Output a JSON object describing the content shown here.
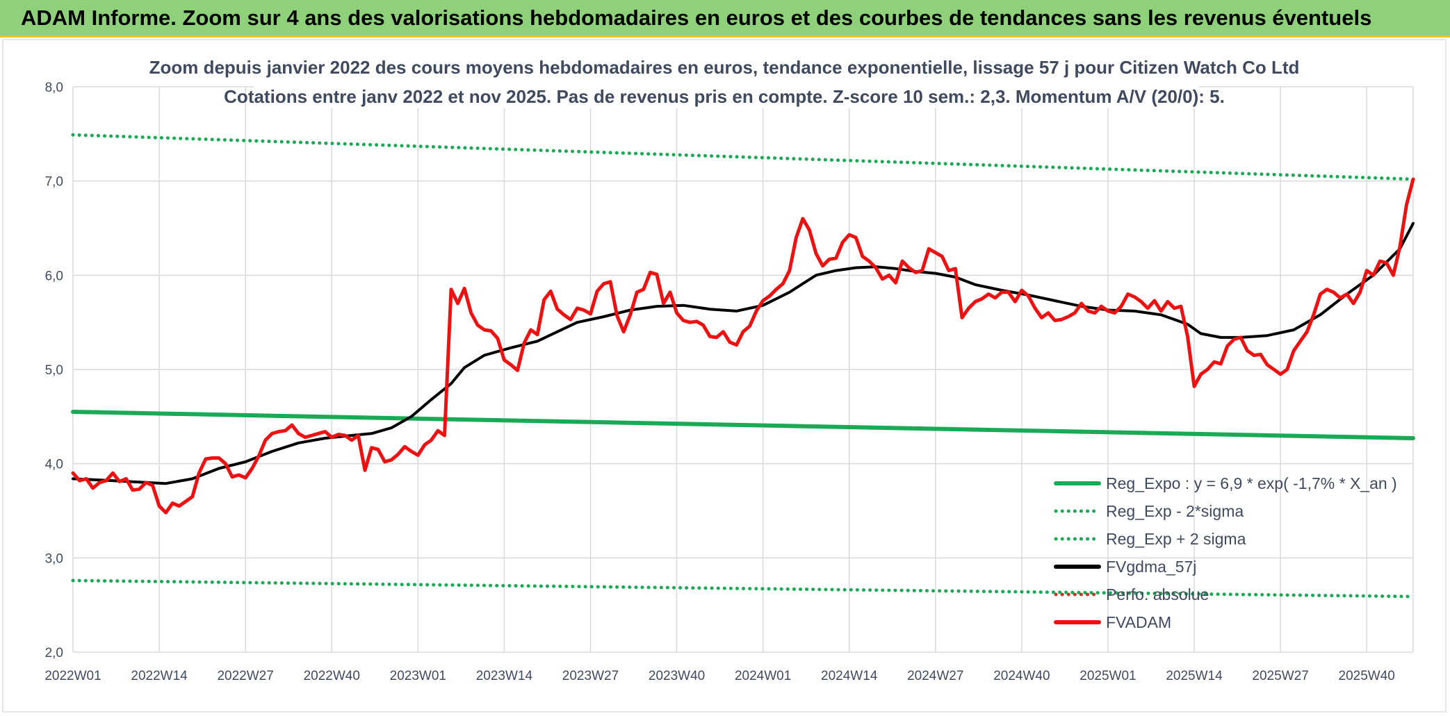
{
  "header": {
    "title": "ADAM Informe. Zoom sur 4 ans des valorisations hebdomadaires en euros et des courbes de tendances sans les revenus éventuels"
  },
  "colors": {
    "banner": "#8fd07a",
    "trend": "#1aaa55",
    "fvgdma": "#000000",
    "fvadam": "#ee1111",
    "perfo": "#c0392b"
  },
  "chart_data": {
    "type": "line",
    "title": "Zoom depuis janvier 2022 des cours moyens hebdomadaires en euros, tendance exponentielle, lissage 57 j pour Citizen Watch Co Ltd",
    "subtitle": "Cotations entre janv 2022 et nov 2025. Pas de revenus pris en compte. Z-score 10 sem.: 2,3. Momentum A/V (20/0): 5.",
    "xlabel": "",
    "ylabel": "",
    "ylim": [
      2.0,
      8.0
    ],
    "y_ticks": [
      "2,0",
      "3,0",
      "4,0",
      "5,0",
      "6,0",
      "7,0",
      "8,0"
    ],
    "x_range": [
      0,
      202
    ],
    "x_ticks": [
      {
        "label": "2022W01",
        "x": 0
      },
      {
        "label": "2022W14",
        "x": 13
      },
      {
        "label": "2022W27",
        "x": 26
      },
      {
        "label": "2022W40",
        "x": 39
      },
      {
        "label": "2023W01",
        "x": 52
      },
      {
        "label": "2023W14",
        "x": 65
      },
      {
        "label": "2023W27",
        "x": 78
      },
      {
        "label": "2023W40",
        "x": 91
      },
      {
        "label": "2024W01",
        "x": 104
      },
      {
        "label": "2024W14",
        "x": 117
      },
      {
        "label": "2024W27",
        "x": 130
      },
      {
        "label": "2024W40",
        "x": 143
      },
      {
        "label": "2025W01",
        "x": 156
      },
      {
        "label": "2025W14",
        "x": 169
      },
      {
        "label": "2025W27",
        "x": 182
      },
      {
        "label": "2025W40",
        "x": 195
      }
    ],
    "series": [
      {
        "name": "Reg_Expo : y = 6,9 * exp( -1,7% *  X_an )",
        "style": "solid",
        "color": "#1aaa55",
        "width": 6,
        "points": [
          [
            0,
            4.55
          ],
          [
            202,
            4.27
          ]
        ]
      },
      {
        "name": "Reg_Exp - 2*sigma",
        "style": "dotted",
        "color": "#1aaa55",
        "width": 5,
        "points": [
          [
            0,
            2.76
          ],
          [
            202,
            2.59
          ]
        ]
      },
      {
        "name": "Reg_Exp + 2 sigma",
        "style": "dotted",
        "color": "#1aaa55",
        "width": 5,
        "points": [
          [
            0,
            7.49
          ],
          [
            202,
            7.02
          ]
        ]
      },
      {
        "name": "FVgdma_57j",
        "style": "solid",
        "color": "#000000",
        "width": 4,
        "points": [
          [
            0,
            3.84
          ],
          [
            6,
            3.82
          ],
          [
            11,
            3.8
          ],
          [
            14,
            3.79
          ],
          [
            18,
            3.84
          ],
          [
            22,
            3.95
          ],
          [
            26,
            4.02
          ],
          [
            30,
            4.13
          ],
          [
            34,
            4.22
          ],
          [
            38,
            4.27
          ],
          [
            42,
            4.3
          ],
          [
            45,
            4.32
          ],
          [
            48,
            4.38
          ],
          [
            51,
            4.5
          ],
          [
            54,
            4.68
          ],
          [
            57,
            4.85
          ],
          [
            59,
            5.02
          ],
          [
            62,
            5.15
          ],
          [
            66,
            5.23
          ],
          [
            70,
            5.3
          ],
          [
            73,
            5.4
          ],
          [
            76,
            5.5
          ],
          [
            80,
            5.56
          ],
          [
            84,
            5.63
          ],
          [
            88,
            5.67
          ],
          [
            92,
            5.68
          ],
          [
            96,
            5.64
          ],
          [
            100,
            5.62
          ],
          [
            104,
            5.68
          ],
          [
            108,
            5.82
          ],
          [
            112,
            6.0
          ],
          [
            115,
            6.05
          ],
          [
            118,
            6.08
          ],
          [
            121,
            6.09
          ],
          [
            124,
            6.07
          ],
          [
            127,
            6.04
          ],
          [
            130,
            6.02
          ],
          [
            133,
            5.98
          ],
          [
            136,
            5.9
          ],
          [
            140,
            5.84
          ],
          [
            144,
            5.79
          ],
          [
            148,
            5.73
          ],
          [
            152,
            5.67
          ],
          [
            156,
            5.63
          ],
          [
            160,
            5.62
          ],
          [
            164,
            5.58
          ],
          [
            168,
            5.48
          ],
          [
            170,
            5.38
          ],
          [
            173,
            5.34
          ],
          [
            176,
            5.34
          ],
          [
            180,
            5.36
          ],
          [
            184,
            5.42
          ],
          [
            188,
            5.58
          ],
          [
            192,
            5.8
          ],
          [
            196,
            6.0
          ],
          [
            200,
            6.28
          ],
          [
            202,
            6.55
          ]
        ]
      },
      {
        "name": "Perfo. absolue",
        "style": "dotted",
        "color": "#c0392b",
        "width": 3,
        "points": []
      },
      {
        "name": "FVADAM",
        "style": "solid",
        "color": "#ee1111",
        "width": 5,
        "points": [
          [
            0,
            3.9
          ],
          [
            1,
            3.82
          ],
          [
            2,
            3.84
          ],
          [
            3,
            3.74
          ],
          [
            4,
            3.8
          ],
          [
            5,
            3.82
          ],
          [
            6,
            3.9
          ],
          [
            7,
            3.81
          ],
          [
            8,
            3.84
          ],
          [
            9,
            3.72
          ],
          [
            10,
            3.73
          ],
          [
            11,
            3.8
          ],
          [
            12,
            3.77
          ],
          [
            13,
            3.55
          ],
          [
            14,
            3.48
          ],
          [
            15,
            3.58
          ],
          [
            16,
            3.55
          ],
          [
            17,
            3.6
          ],
          [
            18,
            3.65
          ],
          [
            19,
            3.9
          ],
          [
            20,
            4.05
          ],
          [
            21,
            4.06
          ],
          [
            22,
            4.06
          ],
          [
            23,
            4.0
          ],
          [
            24,
            3.86
          ],
          [
            25,
            3.88
          ],
          [
            26,
            3.85
          ],
          [
            27,
            3.95
          ],
          [
            28,
            4.08
          ],
          [
            29,
            4.25
          ],
          [
            30,
            4.32
          ],
          [
            31,
            4.34
          ],
          [
            32,
            4.35
          ],
          [
            33,
            4.41
          ],
          [
            34,
            4.32
          ],
          [
            35,
            4.28
          ],
          [
            36,
            4.3
          ],
          [
            37,
            4.32
          ],
          [
            38,
            4.34
          ],
          [
            39,
            4.28
          ],
          [
            40,
            4.31
          ],
          [
            41,
            4.3
          ],
          [
            42,
            4.25
          ],
          [
            43,
            4.3
          ],
          [
            44,
            3.93
          ],
          [
            45,
            4.17
          ],
          [
            46,
            4.15
          ],
          [
            47,
            4.02
          ],
          [
            48,
            4.04
          ],
          [
            49,
            4.1
          ],
          [
            50,
            4.18
          ],
          [
            51,
            4.13
          ],
          [
            52,
            4.09
          ],
          [
            53,
            4.2
          ],
          [
            54,
            4.25
          ],
          [
            55,
            4.35
          ],
          [
            56,
            4.3
          ],
          [
            57,
            5.85
          ],
          [
            58,
            5.7
          ],
          [
            59,
            5.86
          ],
          [
            60,
            5.6
          ],
          [
            61,
            5.47
          ],
          [
            62,
            5.42
          ],
          [
            63,
            5.41
          ],
          [
            64,
            5.33
          ],
          [
            65,
            5.1
          ],
          [
            66,
            5.05
          ],
          [
            67,
            4.99
          ],
          [
            68,
            5.28
          ],
          [
            69,
            5.42
          ],
          [
            70,
            5.37
          ],
          [
            71,
            5.74
          ],
          [
            72,
            5.83
          ],
          [
            73,
            5.64
          ],
          [
            74,
            5.58
          ],
          [
            75,
            5.53
          ],
          [
            76,
            5.65
          ],
          [
            77,
            5.63
          ],
          [
            78,
            5.59
          ],
          [
            79,
            5.83
          ],
          [
            80,
            5.91
          ],
          [
            81,
            5.93
          ],
          [
            82,
            5.57
          ],
          [
            83,
            5.4
          ],
          [
            84,
            5.58
          ],
          [
            85,
            5.82
          ],
          [
            86,
            5.85
          ],
          [
            87,
            6.03
          ],
          [
            88,
            6.01
          ],
          [
            89,
            5.7
          ],
          [
            90,
            5.82
          ],
          [
            91,
            5.6
          ],
          [
            92,
            5.52
          ],
          [
            93,
            5.5
          ],
          [
            94,
            5.51
          ],
          [
            95,
            5.47
          ],
          [
            96,
            5.35
          ],
          [
            97,
            5.34
          ],
          [
            98,
            5.4
          ],
          [
            99,
            5.29
          ],
          [
            100,
            5.26
          ],
          [
            101,
            5.4
          ],
          [
            102,
            5.46
          ],
          [
            103,
            5.62
          ],
          [
            104,
            5.73
          ],
          [
            105,
            5.78
          ],
          [
            106,
            5.85
          ],
          [
            107,
            5.91
          ],
          [
            108,
            6.05
          ],
          [
            109,
            6.4
          ],
          [
            110,
            6.6
          ],
          [
            111,
            6.48
          ],
          [
            112,
            6.23
          ],
          [
            113,
            6.1
          ],
          [
            114,
            6.17
          ],
          [
            115,
            6.18
          ],
          [
            116,
            6.35
          ],
          [
            117,
            6.43
          ],
          [
            118,
            6.4
          ],
          [
            119,
            6.2
          ],
          [
            120,
            6.15
          ],
          [
            121,
            6.08
          ],
          [
            122,
            5.96
          ],
          [
            123,
            6.0
          ],
          [
            124,
            5.92
          ],
          [
            125,
            6.15
          ],
          [
            126,
            6.08
          ],
          [
            127,
            6.03
          ],
          [
            128,
            6.05
          ],
          [
            129,
            6.28
          ],
          [
            130,
            6.24
          ],
          [
            131,
            6.2
          ],
          [
            132,
            6.05
          ],
          [
            133,
            6.07
          ],
          [
            134,
            5.55
          ],
          [
            135,
            5.65
          ],
          [
            136,
            5.72
          ],
          [
            137,
            5.75
          ],
          [
            138,
            5.8
          ],
          [
            139,
            5.76
          ],
          [
            140,
            5.82
          ],
          [
            141,
            5.82
          ],
          [
            142,
            5.72
          ],
          [
            143,
            5.84
          ],
          [
            144,
            5.78
          ],
          [
            145,
            5.65
          ],
          [
            146,
            5.55
          ],
          [
            147,
            5.6
          ],
          [
            148,
            5.52
          ],
          [
            149,
            5.53
          ],
          [
            150,
            5.56
          ],
          [
            151,
            5.6
          ],
          [
            152,
            5.7
          ],
          [
            153,
            5.62
          ],
          [
            154,
            5.6
          ],
          [
            155,
            5.67
          ],
          [
            156,
            5.62
          ],
          [
            157,
            5.6
          ],
          [
            158,
            5.67
          ],
          [
            159,
            5.8
          ],
          [
            160,
            5.77
          ],
          [
            161,
            5.72
          ],
          [
            162,
            5.65
          ],
          [
            163,
            5.73
          ],
          [
            164,
            5.62
          ],
          [
            165,
            5.72
          ],
          [
            166,
            5.65
          ],
          [
            167,
            5.67
          ],
          [
            168,
            5.35
          ],
          [
            169,
            4.82
          ],
          [
            170,
            4.95
          ],
          [
            171,
            5.0
          ],
          [
            172,
            5.08
          ],
          [
            173,
            5.06
          ],
          [
            174,
            5.25
          ],
          [
            175,
            5.32
          ],
          [
            176,
            5.34
          ],
          [
            177,
            5.2
          ],
          [
            178,
            5.15
          ],
          [
            179,
            5.16
          ],
          [
            180,
            5.05
          ],
          [
            181,
            5.0
          ],
          [
            182,
            4.95
          ],
          [
            183,
            5.0
          ],
          [
            184,
            5.2
          ],
          [
            185,
            5.3
          ],
          [
            186,
            5.4
          ],
          [
            187,
            5.58
          ],
          [
            188,
            5.8
          ],
          [
            189,
            5.85
          ],
          [
            190,
            5.82
          ],
          [
            191,
            5.76
          ],
          [
            192,
            5.8
          ],
          [
            193,
            5.7
          ],
          [
            194,
            5.82
          ],
          [
            195,
            6.05
          ],
          [
            196,
            6.0
          ],
          [
            197,
            6.15
          ],
          [
            198,
            6.13
          ],
          [
            199,
            6.0
          ],
          [
            200,
            6.3
          ],
          [
            201,
            6.75
          ],
          [
            202,
            7.02
          ]
        ]
      }
    ],
    "legend": {
      "position": "bottom-right",
      "entries": [
        {
          "label": "Reg_Expo : y = 6,9 * exp( -1,7% *  X_an )",
          "style": "solid",
          "color": "#1aaa55"
        },
        {
          "label": "Reg_Exp - 2*sigma",
          "style": "dotted",
          "color": "#1aaa55"
        },
        {
          "label": "Reg_Exp + 2 sigma",
          "style": "dotted",
          "color": "#1aaa55"
        },
        {
          "label": "FVgdma_57j",
          "style": "solid",
          "color": "#000000"
        },
        {
          "label": "Perfo. absolue",
          "style": "dotted",
          "color": "#c0392b"
        },
        {
          "label": "FVADAM",
          "style": "solid",
          "color": "#ee1111"
        }
      ]
    }
  }
}
